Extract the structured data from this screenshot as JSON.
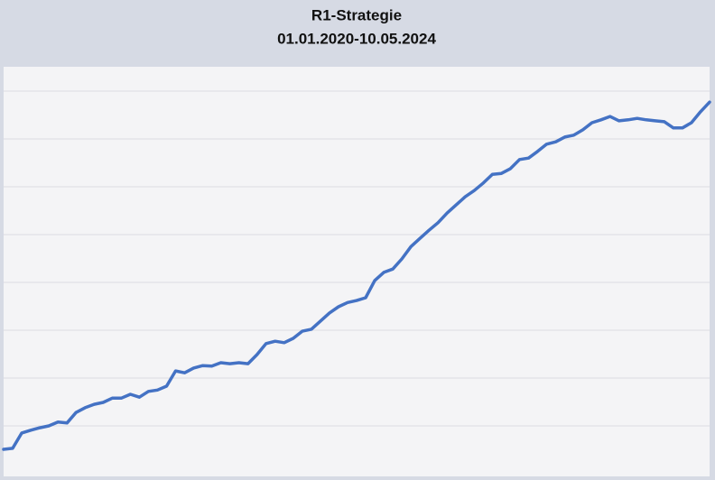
{
  "chart_data": {
    "type": "line",
    "title": "R1-Strategie",
    "subtitle": "01.01.2020-10.05.2024",
    "series": [
      {
        "color": "#4472c4",
        "values": [
          0.51,
          0.53,
          0.85,
          0.91,
          0.96,
          1.0,
          1.08,
          1.06,
          1.28,
          1.38,
          1.45,
          1.49,
          1.58,
          1.58,
          1.66,
          1.6,
          1.72,
          1.75,
          1.83,
          2.15,
          2.11,
          2.21,
          2.26,
          2.25,
          2.32,
          2.3,
          2.32,
          2.3,
          2.49,
          2.72,
          2.77,
          2.74,
          2.83,
          2.98,
          3.02,
          3.19,
          3.36,
          3.49,
          3.58,
          3.62,
          3.68,
          4.04,
          4.21,
          4.28,
          4.49,
          4.75,
          4.92,
          5.09,
          5.25,
          5.45,
          5.62,
          5.79,
          5.92,
          6.08,
          6.26,
          6.28,
          6.38,
          6.57,
          6.6,
          6.74,
          6.89,
          6.94,
          7.04,
          7.08,
          7.19,
          7.34,
          7.4,
          7.47,
          7.38,
          7.4,
          7.43,
          7.4,
          7.38,
          7.36,
          7.23,
          7.23,
          7.34,
          7.57,
          7.77
        ]
      }
    ],
    "ylim": [
      0,
      8.5
    ],
    "yticks": [
      1,
      2,
      3,
      4,
      5,
      6,
      7,
      8
    ],
    "ytick_labels": false,
    "grid": true
  }
}
